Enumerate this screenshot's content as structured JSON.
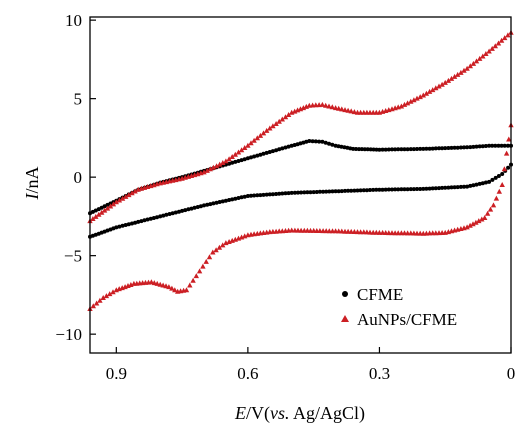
{
  "chart_data": {
    "type": "scatter",
    "xlabel_parts": [
      "E",
      "/V(",
      "vs.",
      " Ag/AgCl)"
    ],
    "ylabel_parts": [
      "I",
      "/nA"
    ],
    "x_reversed": true,
    "xlim": [
      0.96,
      0.0
    ],
    "ylim": [
      -11.2,
      10.2
    ],
    "x_ticks": [
      {
        "value": 0.9,
        "label": "0.9"
      },
      {
        "value": 0.6,
        "label": "0.6"
      },
      {
        "value": 0.3,
        "label": "0.3"
      },
      {
        "value": 0.0,
        "label": "0"
      }
    ],
    "y_ticks": [
      {
        "value": 10,
        "label": "10"
      },
      {
        "value": 5,
        "label": "5"
      },
      {
        "value": 0,
        "label": "0"
      },
      {
        "value": -5,
        "label": "−5"
      },
      {
        "value": -10,
        "label": "−10"
      }
    ],
    "grid": false,
    "legend_position": "lower-right",
    "series": [
      {
        "name": "CFME",
        "color": "#000000",
        "marker": "circle",
        "anodic": [
          [
            0.96,
            -2.3
          ],
          [
            0.9,
            -1.5
          ],
          [
            0.85,
            -0.8
          ],
          [
            0.8,
            -0.35
          ],
          [
            0.75,
            0.0
          ],
          [
            0.7,
            0.4
          ],
          [
            0.65,
            0.8
          ],
          [
            0.6,
            1.2
          ],
          [
            0.55,
            1.6
          ],
          [
            0.5,
            2.0
          ],
          [
            0.46,
            2.3
          ],
          [
            0.43,
            2.25
          ],
          [
            0.4,
            2.0
          ],
          [
            0.36,
            1.8
          ],
          [
            0.3,
            1.75
          ],
          [
            0.2,
            1.8
          ],
          [
            0.1,
            1.9
          ],
          [
            0.05,
            2.0
          ],
          [
            0.0,
            2.0
          ]
        ],
        "cathodic": [
          [
            0.0,
            0.8
          ],
          [
            0.02,
            0.2
          ],
          [
            0.05,
            -0.3
          ],
          [
            0.1,
            -0.6
          ],
          [
            0.2,
            -0.75
          ],
          [
            0.3,
            -0.8
          ],
          [
            0.4,
            -0.9
          ],
          [
            0.5,
            -1.0
          ],
          [
            0.6,
            -1.2
          ],
          [
            0.7,
            -1.8
          ],
          [
            0.8,
            -2.5
          ],
          [
            0.9,
            -3.2
          ],
          [
            0.96,
            -3.8
          ]
        ]
      },
      {
        "name": "AuNPs/CFME",
        "color": "#cc1f24",
        "marker": "triangle",
        "anodic": [
          [
            0.96,
            -2.8
          ],
          [
            0.9,
            -1.6
          ],
          [
            0.85,
            -0.8
          ],
          [
            0.8,
            -0.4
          ],
          [
            0.75,
            -0.1
          ],
          [
            0.7,
            0.3
          ],
          [
            0.65,
            1.0
          ],
          [
            0.6,
            2.0
          ],
          [
            0.55,
            3.1
          ],
          [
            0.5,
            4.1
          ],
          [
            0.46,
            4.55
          ],
          [
            0.43,
            4.6
          ],
          [
            0.4,
            4.4
          ],
          [
            0.35,
            4.1
          ],
          [
            0.3,
            4.1
          ],
          [
            0.25,
            4.5
          ],
          [
            0.2,
            5.2
          ],
          [
            0.15,
            6.0
          ],
          [
            0.1,
            6.9
          ],
          [
            0.05,
            8.0
          ],
          [
            0.0,
            9.2
          ]
        ],
        "cathodic": [
          [
            0.0,
            3.3
          ],
          [
            0.01,
            1.5
          ],
          [
            0.02,
            -0.5
          ],
          [
            0.04,
            -1.8
          ],
          [
            0.06,
            -2.6
          ],
          [
            0.1,
            -3.2
          ],
          [
            0.15,
            -3.55
          ],
          [
            0.2,
            -3.6
          ],
          [
            0.3,
            -3.55
          ],
          [
            0.4,
            -3.45
          ],
          [
            0.5,
            -3.4
          ],
          [
            0.55,
            -3.5
          ],
          [
            0.6,
            -3.7
          ],
          [
            0.65,
            -4.2
          ],
          [
            0.68,
            -4.8
          ],
          [
            0.71,
            -6.0
          ],
          [
            0.74,
            -7.2
          ],
          [
            0.76,
            -7.3
          ],
          [
            0.78,
            -7.0
          ],
          [
            0.82,
            -6.7
          ],
          [
            0.86,
            -6.8
          ],
          [
            0.9,
            -7.2
          ],
          [
            0.93,
            -7.7
          ],
          [
            0.96,
            -8.4
          ]
        ]
      }
    ]
  }
}
